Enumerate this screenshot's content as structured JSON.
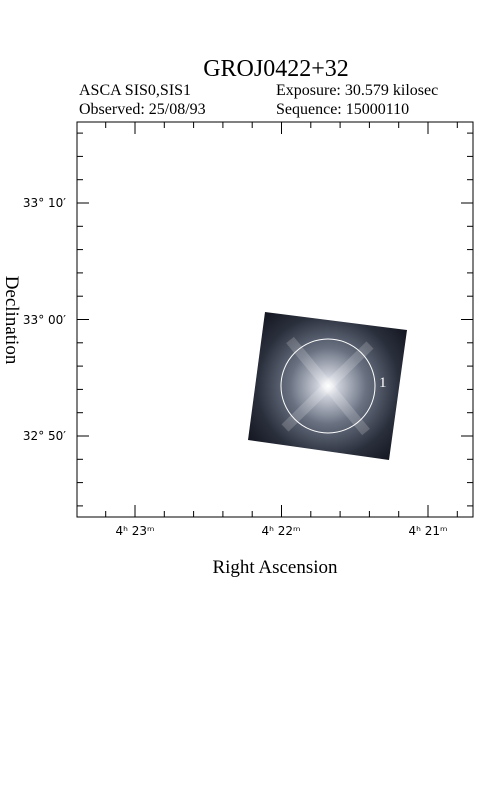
{
  "header": {
    "title": "GROJ0422+32",
    "instrument": "ASCA SIS0,SIS1",
    "exposure": "Exposure: 30.579 kilosec",
    "observed": "Observed: 25/08/93",
    "sequence": "Sequence: 15000110"
  },
  "axes": {
    "x_label": "Right Ascension",
    "y_label": "Declination",
    "x_ticks": [
      "4ʰ 23ᵐ",
      "4ʰ 22ᵐ",
      "4ʰ 21ᵐ"
    ],
    "y_ticks": [
      "33° 10′",
      "33° 00′",
      "32° 50′"
    ]
  },
  "sources": [
    {
      "label": "1"
    }
  ]
}
